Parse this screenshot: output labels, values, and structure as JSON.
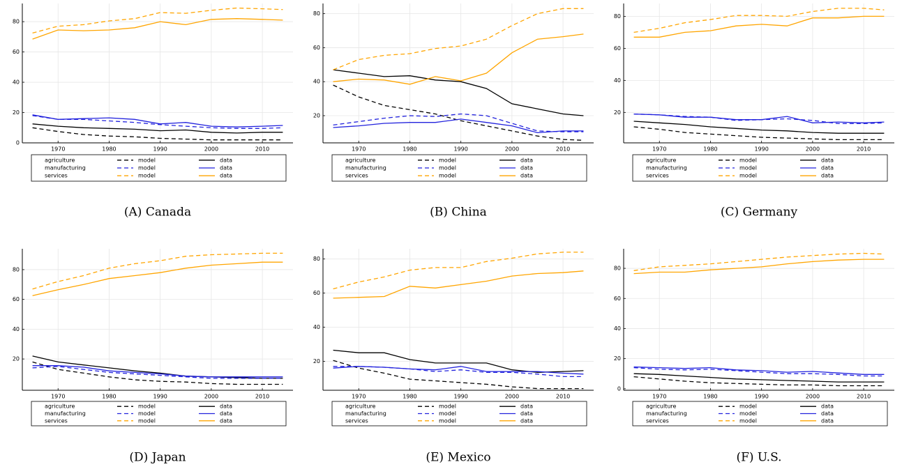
{
  "chart_data": [
    {
      "type": "line",
      "caption": "(A) Canada",
      "x": [
        1965,
        1970,
        1975,
        1980,
        1985,
        1990,
        1995,
        2000,
        2005,
        2010,
        2014
      ],
      "xlim": [
        1963,
        2016
      ],
      "xticks": [
        1970,
        1980,
        1990,
        2000,
        2010
      ],
      "ylim": [
        0,
        92
      ],
      "yticks": [
        0,
        20,
        40,
        60,
        80
      ],
      "grid": true,
      "legend_columns": [
        "model",
        "data"
      ],
      "series": [
        {
          "name": "agriculture",
          "color": "#000000",
          "model": [
            10,
            7.5,
            5.5,
            4.5,
            4,
            3,
            2.5,
            2,
            2,
            2,
            2
          ],
          "data": [
            12.5,
            11,
            10,
            9.5,
            9,
            8,
            8.5,
            7,
            6.5,
            7,
            7
          ]
        },
        {
          "name": "manufacturing",
          "color": "#2222dd",
          "model": [
            18,
            15.5,
            15.5,
            14.5,
            13.5,
            12,
            11,
            10,
            9.5,
            9.5,
            10
          ],
          "data": [
            18.5,
            15.5,
            16,
            16.5,
            15.5,
            12.5,
            13.5,
            11,
            10.5,
            11,
            11.5
          ]
        },
        {
          "name": "services",
          "color": "#ffa500",
          "model": [
            72.5,
            77,
            78,
            80.5,
            82,
            86,
            85.5,
            87.5,
            89,
            88.5,
            88
          ],
          "data": [
            68.5,
            74.5,
            74,
            74.5,
            76,
            80,
            78,
            81.5,
            82,
            81.5,
            81
          ]
        }
      ]
    },
    {
      "type": "line",
      "caption": "(B) China",
      "x": [
        1965,
        1970,
        1975,
        1980,
        1985,
        1990,
        1995,
        2000,
        2005,
        2010,
        2014
      ],
      "xlim": [
        1963,
        2016
      ],
      "xticks": [
        1970,
        1980,
        1990,
        2000,
        2010
      ],
      "ylim": [
        4,
        86
      ],
      "yticks": [
        20,
        40,
        60,
        80
      ],
      "grid": true,
      "legend_columns": [
        "model",
        "data"
      ],
      "series": [
        {
          "name": "agriculture",
          "color": "#000000",
          "model": [
            38,
            31,
            26,
            23.5,
            21,
            17,
            14,
            11,
            8,
            6,
            5.5
          ],
          "data": [
            47,
            45,
            43,
            43.5,
            41,
            40,
            36,
            27,
            24,
            21,
            20
          ]
        },
        {
          "name": "manufacturing",
          "color": "#2222dd",
          "model": [
            14.5,
            16.5,
            18.5,
            20,
            19.5,
            21,
            20,
            15.5,
            11,
            10.5,
            10.5
          ],
          "data": [
            13,
            14,
            15.5,
            16,
            16,
            18,
            16,
            14,
            10,
            11,
            11
          ]
        },
        {
          "name": "services",
          "color": "#ffa500",
          "model": [
            47,
            53,
            55.5,
            56.5,
            59.5,
            61,
            65,
            73,
            80,
            83,
            83
          ],
          "data": [
            40,
            41.5,
            41,
            38.5,
            43,
            40.5,
            45,
            57,
            65,
            66.5,
            68
          ]
        }
      ]
    },
    {
      "type": "line",
      "caption": "(C) Germany",
      "x": [
        1965,
        1970,
        1975,
        1980,
        1985,
        1990,
        1995,
        2000,
        2005,
        2010,
        2014
      ],
      "xlim": [
        1963,
        2016
      ],
      "xticks": [
        1970,
        1980,
        1990,
        2000,
        2010
      ],
      "ylim": [
        1,
        88
      ],
      "yticks": [
        20,
        40,
        60,
        80
      ],
      "grid": true,
      "legend_columns": [
        "model",
        "data"
      ],
      "series": [
        {
          "name": "agriculture",
          "color": "#000000",
          "model": [
            11,
            9.5,
            7.5,
            6.5,
            5.5,
            4.5,
            4,
            3.5,
            3,
            3,
            3
          ],
          "data": [
            14.5,
            13.5,
            12.5,
            11,
            10,
            9,
            8.5,
            7.5,
            7,
            7,
            7
          ]
        },
        {
          "name": "manufacturing",
          "color": "#2222dd",
          "model": [
            19,
            18.5,
            17.5,
            17,
            15,
            15.5,
            16,
            15,
            13,
            13,
            13.5
          ],
          "data": [
            19,
            18.5,
            17,
            17,
            15.5,
            15.5,
            17.5,
            13.5,
            14,
            13.5,
            14
          ]
        },
        {
          "name": "services",
          "color": "#ffa500",
          "model": [
            70,
            72.5,
            76,
            78,
            80.5,
            80.5,
            80,
            83,
            85,
            85,
            84
          ],
          "data": [
            67,
            67,
            70,
            71,
            74,
            75,
            74,
            79,
            79,
            80,
            80
          ]
        }
      ]
    },
    {
      "type": "line",
      "caption": "(D) Japan",
      "x": [
        1965,
        1970,
        1975,
        1980,
        1985,
        1990,
        1995,
        2000,
        2005,
        2010,
        2014
      ],
      "xlim": [
        1963,
        2016
      ],
      "xticks": [
        1970,
        1980,
        1990,
        2000,
        2010
      ],
      "ylim": [
        -1,
        94
      ],
      "yticks": [
        20,
        40,
        60,
        80
      ],
      "grid": true,
      "legend_columns": [
        "model",
        "data"
      ],
      "series": [
        {
          "name": "agriculture",
          "color": "#000000",
          "model": [
            18,
            13,
            10.5,
            8,
            6,
            5,
            4.5,
            3.5,
            3,
            3,
            3
          ],
          "data": [
            22,
            18,
            16,
            14,
            12,
            10.5,
            8.5,
            8,
            7.5,
            7,
            7
          ]
        },
        {
          "name": "manufacturing",
          "color": "#2222dd",
          "model": [
            14,
            15,
            13,
            11,
            10,
            9,
            8,
            7,
            7,
            7,
            7
          ],
          "data": [
            15.5,
            15.5,
            14.5,
            12,
            11,
            10,
            8.5,
            8,
            8,
            8,
            8
          ]
        },
        {
          "name": "services",
          "color": "#ffa500",
          "model": [
            67,
            72,
            76,
            81,
            84,
            86,
            89,
            90,
            90.5,
            91,
            91
          ],
          "data": [
            62.5,
            66.5,
            70,
            74,
            76,
            78,
            81,
            83,
            84,
            85,
            85
          ]
        }
      ]
    },
    {
      "type": "line",
      "caption": "(E) Mexico",
      "x": [
        1965,
        1970,
        1975,
        1980,
        1985,
        1990,
        1995,
        2000,
        2005,
        2010,
        2014
      ],
      "xlim": [
        1963,
        2016
      ],
      "xticks": [
        1970,
        1980,
        1990,
        2000,
        2010
      ],
      "ylim": [
        3,
        86
      ],
      "yticks": [
        20,
        40,
        60,
        80
      ],
      "grid": true,
      "legend_columns": [
        "model",
        "data"
      ],
      "series": [
        {
          "name": "agriculture",
          "color": "#000000",
          "model": [
            20.5,
            16,
            13,
            9.5,
            8.5,
            7.5,
            6.5,
            5,
            4,
            4,
            4
          ],
          "data": [
            26.5,
            25,
            25,
            21,
            19,
            19,
            19,
            15,
            13.5,
            14,
            14.5
          ]
        },
        {
          "name": "manufacturing",
          "color": "#2222dd",
          "model": [
            17,
            17,
            16.5,
            15.5,
            14,
            15,
            13.5,
            13.5,
            12.5,
            11,
            11
          ],
          "data": [
            16,
            17,
            16.5,
            15.5,
            15,
            17,
            14,
            14,
            14,
            13,
            12.5
          ]
        },
        {
          "name": "services",
          "color": "#ffa500",
          "model": [
            62.5,
            66.5,
            69.5,
            73.5,
            75,
            75,
            78.5,
            80.5,
            83,
            84,
            84
          ],
          "data": [
            57,
            57.5,
            58,
            64,
            63,
            65,
            67,
            70,
            71.5,
            72,
            73
          ]
        }
      ]
    },
    {
      "type": "line",
      "caption": "(F) U.S.",
      "x": [
        1965,
        1970,
        1975,
        1980,
        1985,
        1990,
        1995,
        2000,
        2005,
        2010,
        2014
      ],
      "xlim": [
        1963,
        2016
      ],
      "xticks": [
        1970,
        1980,
        1990,
        2000,
        2010
      ],
      "ylim": [
        -1,
        93
      ],
      "yticks": [
        0,
        20,
        40,
        60,
        80
      ],
      "grid": true,
      "legend_columns": [
        "model",
        "data"
      ],
      "series": [
        {
          "name": "agriculture",
          "color": "#000000",
          "model": [
            8,
            6.5,
            5,
            4,
            3.5,
            3,
            2.5,
            2.5,
            2,
            2,
            2
          ],
          "data": [
            10,
            9.5,
            8.5,
            7.5,
            6.5,
            6,
            5.5,
            5,
            4.5,
            4.5,
            4.5
          ]
        },
        {
          "name": "manufacturing",
          "color": "#2222dd",
          "model": [
            14,
            13,
            12.5,
            13,
            12,
            11,
            10,
            10,
            9.5,
            8.5,
            8.5
          ],
          "data": [
            14.5,
            14,
            13.5,
            14,
            12.5,
            12,
            11,
            11.5,
            10.5,
            9.5,
            9.5
          ]
        },
        {
          "name": "services",
          "color": "#ffa500",
          "model": [
            78.5,
            81,
            82,
            83,
            84.5,
            86,
            87.5,
            88.5,
            89.5,
            90,
            89.5
          ],
          "data": [
            76.5,
            77.5,
            77.5,
            79,
            80,
            81,
            83,
            84.5,
            85.5,
            86,
            86
          ]
        }
      ]
    }
  ]
}
